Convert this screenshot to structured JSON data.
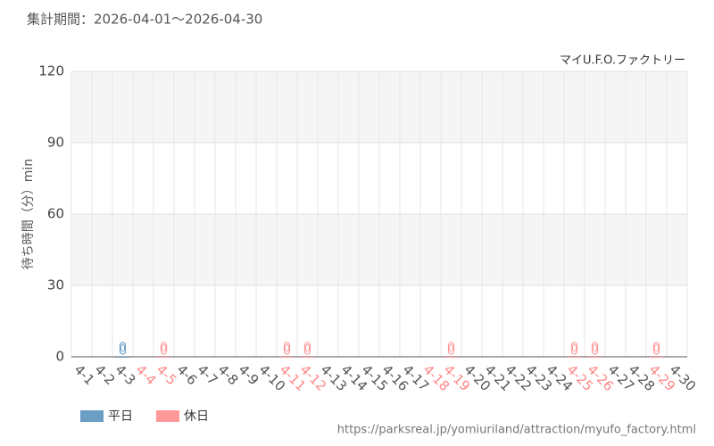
{
  "chart_data": {
    "type": "bar",
    "title": "集計期間：2026-04-01～2026-04-30",
    "subtitle": "マイU.F.O.ファクトリー",
    "y_label": "待ち時間（分）min",
    "source": "https://parksreal.jp/yomiuriland/attraction/myufo_factory.html",
    "categories": [
      "4-1",
      "4-2",
      "4-3",
      "4-4",
      "4-5",
      "4-6",
      "4-7",
      "4-8",
      "4-9",
      "4-10",
      "4-11",
      "4-12",
      "4-13",
      "4-14",
      "4-15",
      "4-16",
      "4-17",
      "4-18",
      "4-19",
      "4-20",
      "4-21",
      "4-22",
      "4-23",
      "4-24",
      "4-25",
      "4-26",
      "4-27",
      "4-28",
      "4-29",
      "4-30"
    ],
    "category_colors": [
      "#555",
      "#555",
      "#555",
      "#ff8888",
      "#ff8888",
      "#555",
      "#555",
      "#555",
      "#555",
      "#555",
      "#ff8888",
      "#ff8888",
      "#555",
      "#555",
      "#555",
      "#555",
      "#555",
      "#ff8888",
      "#ff8888",
      "#555",
      "#555",
      "#555",
      "#555",
      "#555",
      "#ff8888",
      "#ff8888",
      "#555",
      "#555",
      "#ff8888",
      "#555"
    ],
    "series": [
      {
        "name": "平日",
        "color": "#6a9ec5",
        "values": [
          null,
          null,
          0,
          null,
          null,
          null,
          null,
          null,
          null,
          null,
          null,
          null,
          null,
          null,
          null,
          null,
          null,
          null,
          null,
          null,
          null,
          null,
          null,
          null,
          null,
          null,
          null,
          null,
          null,
          null
        ]
      },
      {
        "name": "休日",
        "color": "#ff9999",
        "values": [
          null,
          null,
          null,
          null,
          0,
          null,
          null,
          null,
          null,
          null,
          0,
          0,
          null,
          null,
          null,
          null,
          null,
          null,
          0,
          null,
          null,
          null,
          null,
          null,
          0,
          0,
          null,
          null,
          0,
          null
        ]
      }
    ],
    "ylim": [
      0,
      120
    ],
    "yticks": [
      0,
      30,
      60,
      90,
      120
    ],
    "grid": true
  }
}
